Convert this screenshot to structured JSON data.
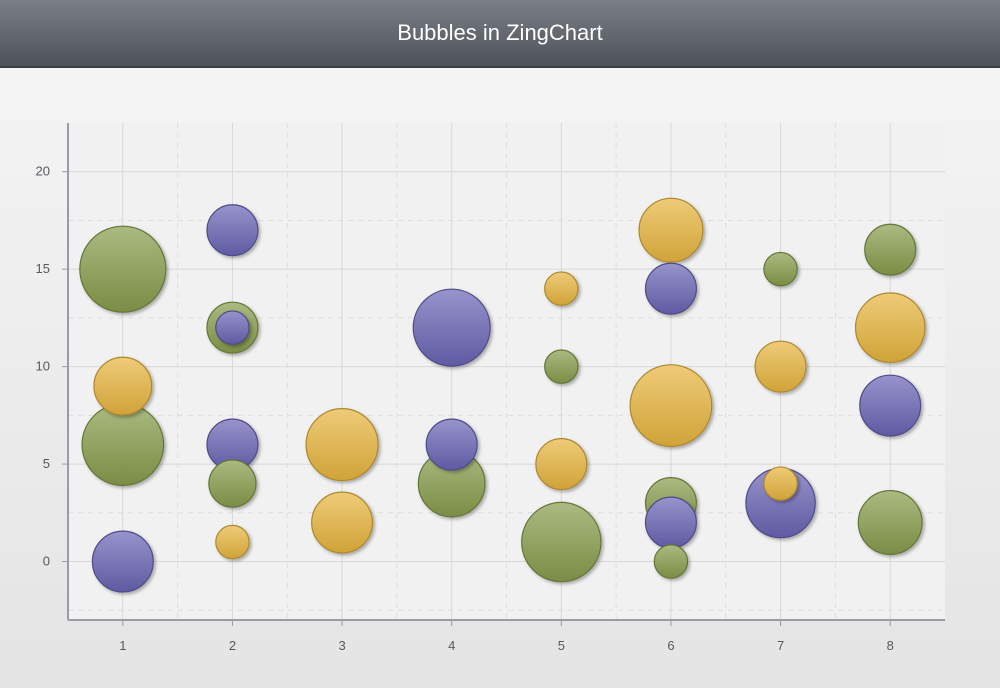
{
  "title": "Bubbles in ZingChart",
  "chart_data": {
    "type": "bubble",
    "title": "Bubbles in ZingChart",
    "xlabel": "",
    "ylabel": "",
    "x_ticks": [
      1,
      2,
      3,
      4,
      5,
      6,
      7,
      8
    ],
    "y_ticks": [
      0,
      5,
      10,
      15,
      20
    ],
    "xlim": [
      0.5,
      8.5
    ],
    "ylim": [
      -3,
      22.5
    ],
    "grid": true,
    "legend": "none",
    "series": [
      {
        "color": "#879c4b",
        "points": [
          {
            "x": 1,
            "y": 15,
            "size": 10
          },
          {
            "x": 1,
            "y": 6,
            "size": 9
          },
          {
            "x": 2,
            "y": 12,
            "size": 3.5
          },
          {
            "x": 2,
            "y": 4,
            "size": 3
          },
          {
            "x": 4,
            "y": 4,
            "size": 6
          },
          {
            "x": 5,
            "y": 10,
            "size": 1.5
          },
          {
            "x": 5,
            "y": 1,
            "size": 8.5
          },
          {
            "x": 6,
            "y": 3,
            "size": 3.5
          },
          {
            "x": 6,
            "y": 0,
            "size": 1.5
          },
          {
            "x": 7,
            "y": 15,
            "size": 1.5
          },
          {
            "x": 8,
            "y": 16,
            "size": 3.5
          },
          {
            "x": 8,
            "y": 2,
            "size": 5.5
          }
        ]
      },
      {
        "color": "#e7b53e",
        "points": [
          {
            "x": 1,
            "y": 9,
            "size": 4.5
          },
          {
            "x": 2,
            "y": 1,
            "size": 1.5
          },
          {
            "x": 3,
            "y": 6,
            "size": 7
          },
          {
            "x": 3,
            "y": 2,
            "size": 5
          },
          {
            "x": 5,
            "y": 14,
            "size": 1.5
          },
          {
            "x": 5,
            "y": 5,
            "size": 3.5
          },
          {
            "x": 6,
            "y": 17,
            "size": 5.5
          },
          {
            "x": 6,
            "y": 8,
            "size": 9
          },
          {
            "x": 7,
            "y": 10,
            "size": 3.5
          },
          {
            "x": 7,
            "y": 4,
            "size": 1.5
          },
          {
            "x": 8,
            "y": 12,
            "size": 6.5
          }
        ]
      },
      {
        "color": "#6a64b4",
        "points": [
          {
            "x": 1,
            "y": 0,
            "size": 5
          },
          {
            "x": 2,
            "y": 17,
            "size": 3.5
          },
          {
            "x": 2,
            "y": 12,
            "size": 1.5
          },
          {
            "x": 2,
            "y": 6,
            "size": 3.5
          },
          {
            "x": 4,
            "y": 12,
            "size": 8
          },
          {
            "x": 4,
            "y": 6,
            "size": 3.5
          },
          {
            "x": 6,
            "y": 14,
            "size": 3.5
          },
          {
            "x": 6,
            "y": 2,
            "size": 3.5
          },
          {
            "x": 7,
            "y": 3,
            "size": 6.5
          },
          {
            "x": 8,
            "y": 8,
            "size": 5
          }
        ]
      }
    ]
  }
}
